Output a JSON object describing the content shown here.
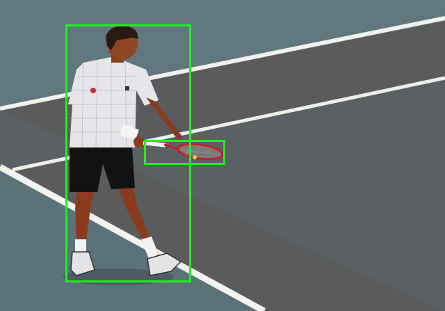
{
  "image": {
    "subject": "tennis-player-holding-racket",
    "annotations": [
      {
        "label_name": "person-bounding-box",
        "color": "#22ee22"
      },
      {
        "label_name": "tennis-racket-bounding-box",
        "color": "#22ee22"
      }
    ],
    "colors": {
      "court_outer": "#5f777d",
      "court_inner": "#5b5d5e",
      "court_line": "#f1f1ee",
      "box_outline": "#22ee22",
      "shirt": "#e6e6ea",
      "shorts": "#121212",
      "racket_frame": "#c81e2a"
    }
  }
}
